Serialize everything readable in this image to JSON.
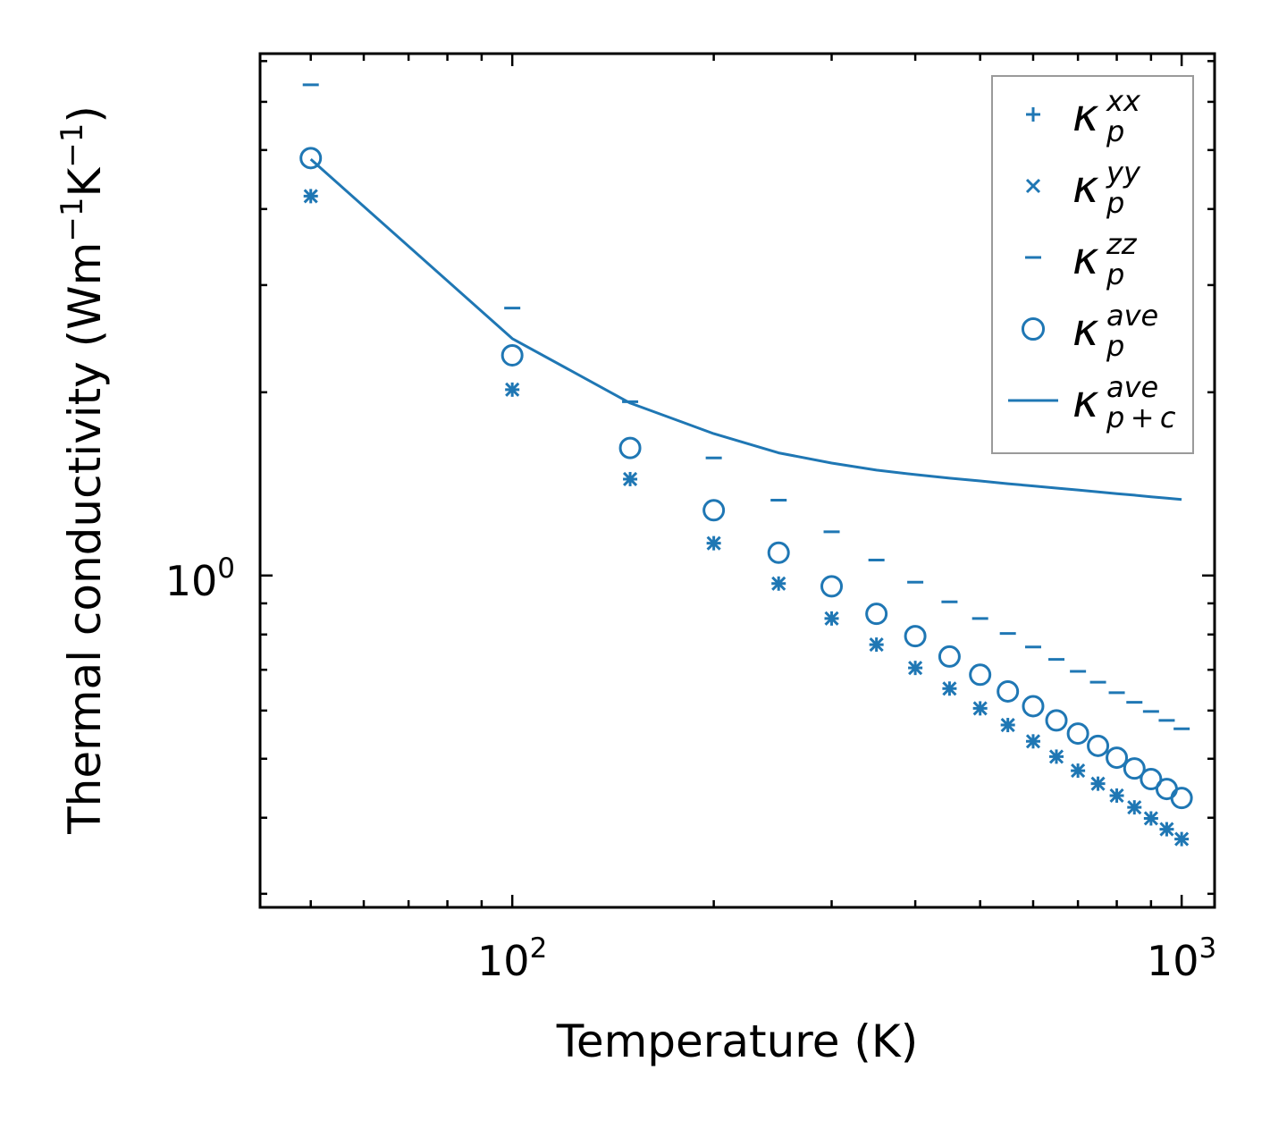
{
  "chart_data": {
    "type": "scatter",
    "title": "",
    "xlabel": "Temperature (K)",
    "ylabel": {
      "prefix": "Thermal conductivity (Wm",
      "sup1": "−1",
      "mid": "K",
      "sup2": "−1",
      "suffix": ")"
    },
    "xscale": "log",
    "yscale": "log",
    "xlim": [
      42,
      1120
    ],
    "ylim": [
      0.285,
      7.2
    ],
    "x_major_ticks": [
      {
        "value": 100,
        "base": "10",
        "exp": "2"
      },
      {
        "value": 1000,
        "base": "10",
        "exp": "3"
      }
    ],
    "y_major_ticks": [
      {
        "value": 1,
        "base": "10",
        "exp": "0"
      }
    ],
    "x": [
      50,
      100,
      150,
      200,
      250,
      300,
      350,
      400,
      450,
      500,
      550,
      600,
      650,
      700,
      750,
      800,
      850,
      900,
      950,
      1000
    ],
    "series": [
      {
        "name": "kappa_p_xx",
        "marker": "plus",
        "values": [
          4.2,
          2.02,
          1.44,
          1.13,
          0.97,
          0.85,
          0.77,
          0.705,
          0.652,
          0.605,
          0.568,
          0.534,
          0.504,
          0.478,
          0.455,
          0.435,
          0.416,
          0.399,
          0.383,
          0.369
        ]
      },
      {
        "name": "kappa_p_yy",
        "marker": "x",
        "values": [
          4.2,
          2.02,
          1.44,
          1.13,
          0.97,
          0.85,
          0.77,
          0.705,
          0.652,
          0.605,
          0.568,
          0.534,
          0.504,
          0.478,
          0.455,
          0.435,
          0.416,
          0.399,
          0.383,
          0.369
        ]
      },
      {
        "name": "kappa_p_zz",
        "marker": "hline",
        "values": [
          6.4,
          2.75,
          1.93,
          1.56,
          1.33,
          1.18,
          1.06,
          0.975,
          0.905,
          0.85,
          0.803,
          0.763,
          0.728,
          0.696,
          0.668,
          0.642,
          0.619,
          0.598,
          0.578,
          0.56
        ]
      },
      {
        "name": "kappa_p_ave",
        "marker": "circle",
        "values": [
          4.85,
          2.3,
          1.62,
          1.28,
          1.09,
          0.96,
          0.865,
          0.795,
          0.736,
          0.687,
          0.645,
          0.61,
          0.578,
          0.55,
          0.525,
          0.502,
          0.482,
          0.463,
          0.446,
          0.431
        ]
      },
      {
        "name": "kappa_p+c_ave",
        "marker": "line",
        "values": [
          4.83,
          2.45,
          1.92,
          1.71,
          1.59,
          1.53,
          1.49,
          1.465,
          1.445,
          1.43,
          1.415,
          1.403,
          1.392,
          1.382,
          1.372,
          1.363,
          1.355,
          1.347,
          1.34,
          1.333
        ]
      }
    ],
    "legend": {
      "position": "top-right",
      "entries": [
        {
          "sym": "κ",
          "sub": "p",
          "sup": "xx",
          "marker": "plus"
        },
        {
          "sym": "κ",
          "sub": "p",
          "sup": "yy",
          "marker": "x"
        },
        {
          "sym": "κ",
          "sub": "p",
          "sup": "zz",
          "marker": "hline"
        },
        {
          "sym": "κ",
          "sub": "p",
          "sup": "ave",
          "marker": "circle"
        },
        {
          "sym": "κ",
          "sub": "p + c",
          "sup": "ave",
          "marker": "line"
        }
      ]
    },
    "colors": {
      "series": "#1f77b4",
      "axes": "#000000",
      "legend_border": "#9a9a9a"
    }
  }
}
